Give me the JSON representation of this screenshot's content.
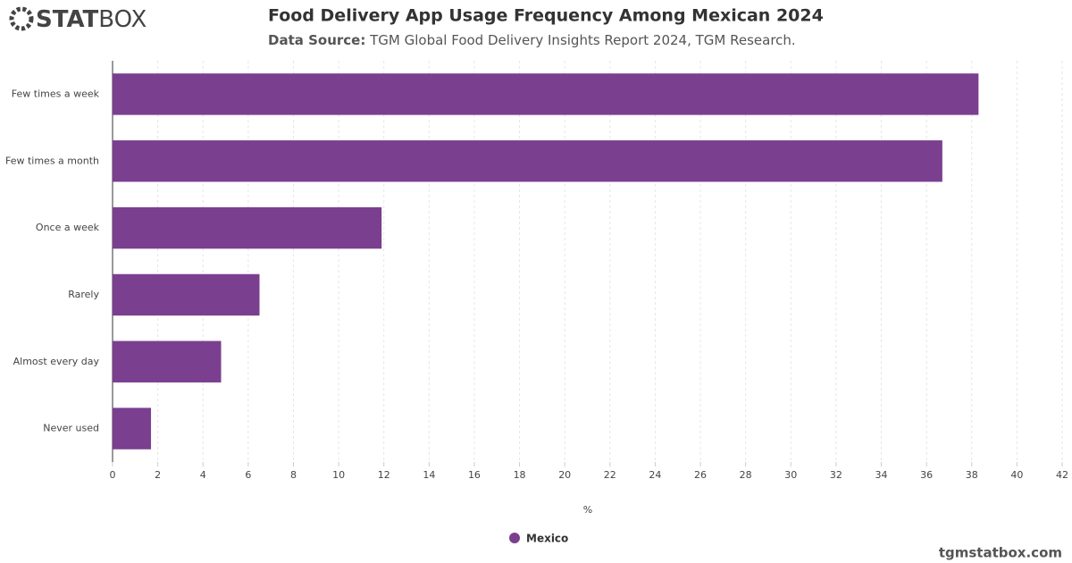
{
  "brand": {
    "logo_bold": "STAT",
    "logo_light": "BOX",
    "footer": "tgmstatbox.com"
  },
  "chart_data": {
    "type": "bar",
    "orientation": "horizontal",
    "title": "Food Delivery App Usage Frequency Among Mexican 2024",
    "subtitle_label": "Data Source:",
    "subtitle": "TGM Global Food Delivery Insights Report 2024, TGM Research.",
    "x_label": "%",
    "categories": [
      "Few times a week",
      "Few times a month",
      "Once a week",
      "Rarely",
      "Almost every day",
      "Never used"
    ],
    "series": [
      {
        "name": "Mexico",
        "color": "#7b3f8f",
        "values": [
          38.3,
          36.7,
          11.9,
          6.5,
          4.8,
          1.7
        ]
      }
    ],
    "xlim": [
      0,
      42
    ],
    "xticks": [
      0,
      2,
      4,
      6,
      8,
      10,
      12,
      14,
      16,
      18,
      20,
      22,
      24,
      26,
      28,
      30,
      32,
      34,
      36,
      38,
      40,
      42
    ],
    "grid": true
  }
}
